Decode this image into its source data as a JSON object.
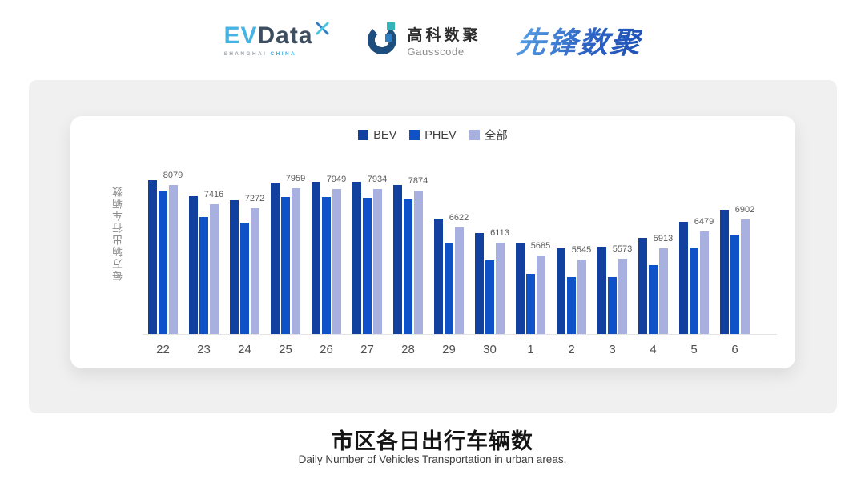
{
  "header": {
    "evdata_logo": {
      "ev": "EV",
      "data": "Data",
      "sub_left": "SHANGHAI",
      "sub_right": "CHINA"
    },
    "gausscode_logo": {
      "cn": "高科数聚",
      "en": "Gausscode"
    },
    "pioneer_logo": {
      "text": "先锋数聚"
    }
  },
  "chart_data": {
    "type": "bar",
    "categories": [
      "22",
      "23",
      "24",
      "25",
      "26",
      "27",
      "28",
      "29",
      "30",
      "1",
      "2",
      "3",
      "4",
      "5",
      "6"
    ],
    "series": [
      {
        "key": "bev",
        "name": "BEV",
        "color": "#12409e",
        "values": [
          8240,
          7680,
          7560,
          8150,
          8190,
          8170,
          8060,
          6930,
          6450,
          6080,
          5920,
          5960,
          6260,
          6810,
          7230
        ]
      },
      {
        "key": "phev",
        "name": "PHEV",
        "color": "#0f52c7",
        "values": [
          7890,
          6990,
          6800,
          7650,
          7660,
          7630,
          7570,
          6080,
          5520,
          5050,
          4940,
          4930,
          5350,
          5940,
          6390
        ]
      },
      {
        "key": "all",
        "name": "全部",
        "color": "#a7b0de",
        "labeled": true,
        "values": [
          8079,
          7416,
          7272,
          7959,
          7949,
          7934,
          7874,
          6622,
          6113,
          5685,
          5545,
          5573,
          5913,
          6479,
          6902
        ]
      }
    ],
    "ylabel": "每万辆出行车辆数",
    "ylim": [
      3000,
      9000
    ],
    "grid": false,
    "legend_position": "top",
    "title": "市区各日出行车辆数"
  },
  "footer": {
    "title": "市区各日出行车辆数",
    "subtitle": "Daily Number of Vehicles Transportation in urban areas."
  },
  "colors": {
    "panel_bg": "#f0f0f0",
    "card_bg": "#ffffff",
    "axis_line": "#e4e4e4",
    "value_label": "#5a5a5a",
    "evdata_cyan": "#45b4e4",
    "evdata_slate": "#3d4e60",
    "gauss_navy": "#1d4e7e",
    "gauss_teal": "#35b5b8",
    "gauss_blue": "#2f7ec2",
    "pioneer_blue": "#2e66c6"
  }
}
